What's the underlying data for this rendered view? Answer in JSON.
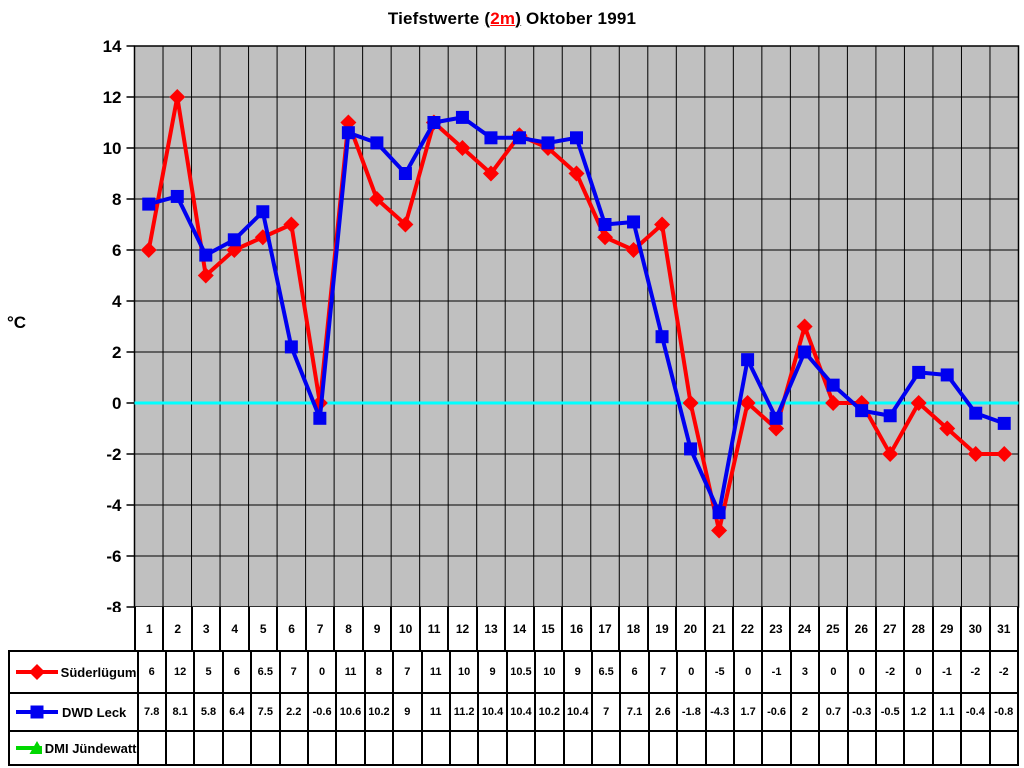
{
  "title": {
    "part1": "Tiefstwerte ",
    "paren_open": "(",
    "highlight": "2m",
    "paren_close": ")",
    "part3": " Oktober 1991",
    "highlight_color": "#ff0000"
  },
  "chart_data": {
    "type": "line",
    "title": "Tiefstwerte (2m) Oktober 1991",
    "xlabel": "",
    "ylabel": "°C",
    "ylim": [
      -8,
      14
    ],
    "ytick_step": 2,
    "grid": true,
    "plot_bg": "#c0c0c0",
    "grid_color": "#000000",
    "zero_line": {
      "value": 0,
      "color": "#00ffff"
    },
    "x": [
      1,
      2,
      3,
      4,
      5,
      6,
      7,
      8,
      9,
      10,
      11,
      12,
      13,
      14,
      15,
      16,
      17,
      18,
      19,
      20,
      21,
      22,
      23,
      24,
      25,
      26,
      27,
      28,
      29,
      30,
      31
    ],
    "series": [
      {
        "id": "suederluegum",
        "name": "Süderlügum",
        "color": "#ff0000",
        "marker": "diamond",
        "values": [
          6,
          12,
          5,
          6,
          6.5,
          7,
          0,
          11,
          8,
          7,
          11,
          10,
          9,
          10.5,
          10,
          9,
          6.5,
          6,
          7,
          0,
          -5,
          0,
          -1,
          3,
          0,
          0,
          -2,
          0,
          -1,
          -2,
          -2
        ]
      },
      {
        "id": "dwd-leck",
        "name": "DWD Leck",
        "color": "#0000f0",
        "marker": "square",
        "values": [
          7.8,
          8.1,
          5.8,
          6.4,
          7.5,
          2.2,
          -0.6,
          10.6,
          10.2,
          9,
          11,
          11.2,
          10.4,
          10.4,
          10.2,
          10.4,
          7,
          7.1,
          2.6,
          -1.8,
          -4.3,
          1.7,
          -0.6,
          2,
          0.7,
          -0.3,
          -0.5,
          1.2,
          1.1,
          -0.4,
          -0.8
        ]
      },
      {
        "id": "dmi-juendewatt",
        "name": "DMI Jündewatt",
        "color": "#00d800",
        "marker": "triangle",
        "values": []
      }
    ],
    "legend_position": "table-left"
  }
}
